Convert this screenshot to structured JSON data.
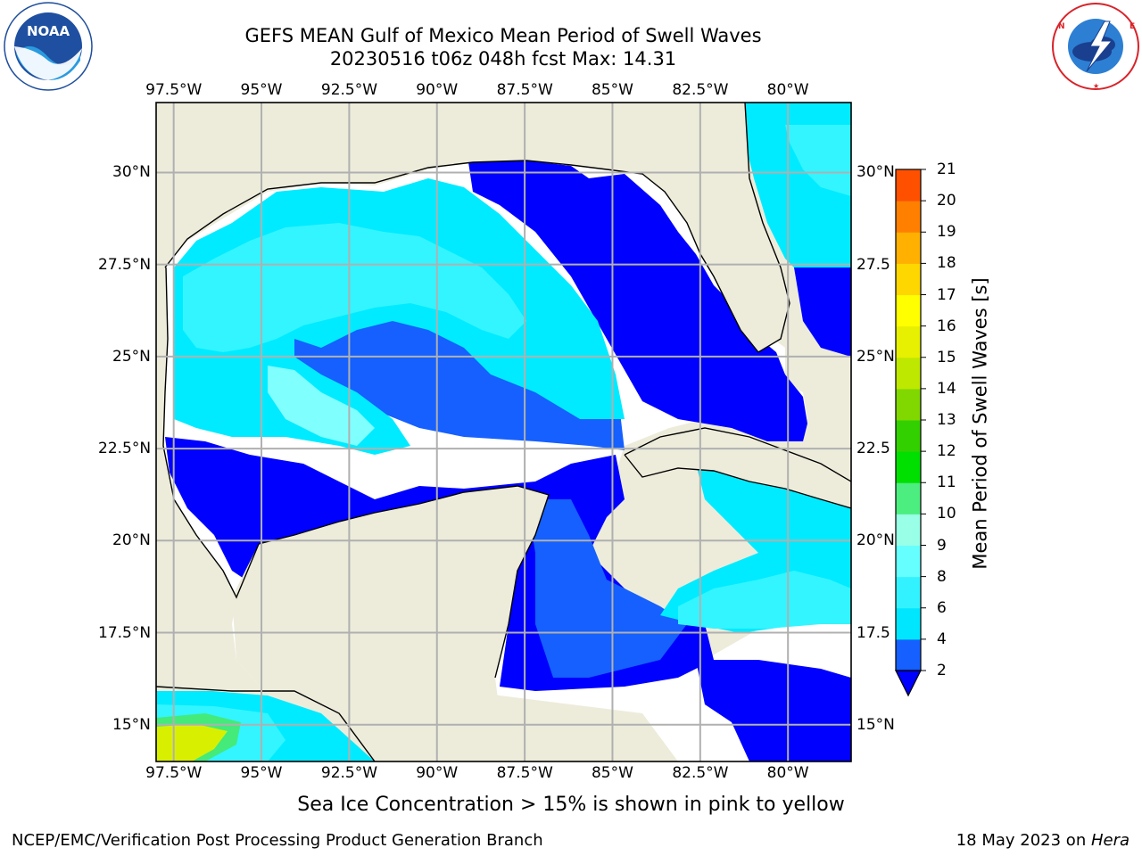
{
  "header": {
    "title": "GEFS MEAN Gulf of Mexico Mean Period of Swell Waves",
    "subtitle": "20230516 t06z 048h fcst   Max: 14.31"
  },
  "logos": {
    "left": "NOAA",
    "left_ring_text": "NATIONAL OCEANIC AND ATMOSPHERIC ADMINISTRATION · U.S. DEPARTMENT OF COMMERCE",
    "right_ring_text": "NATIONAL WEATHER SERVICE"
  },
  "footer": {
    "caption": "Sea Ice Concentration > 15% is shown in pink to yellow",
    "credit": "NCEP/EMC/Verification Post Processing Product Generation Branch",
    "date_prefix": "18 May 2023 on ",
    "date_host": "Hera"
  },
  "chart_data": {
    "type": "heatmap",
    "title": "GEFS MEAN Gulf of Mexico Mean Period of Swell Waves",
    "subtitle": "20230516 t06z 048h fcst   Max: 14.31",
    "max_value": 14.31,
    "colorbar_label": "Mean Period of Swell Waves [s]",
    "lon_ticks": [
      "97.5°W",
      "95°W",
      "92.5°W",
      "90°W",
      "87.5°W",
      "85°W",
      "82.5°W",
      "80°W"
    ],
    "lat_ticks_left": [
      "30°N",
      "27.5°N",
      "25°N",
      "22.5°N",
      "20°N",
      "17.5°N",
      "15°N"
    ],
    "lat_ticks_right": [
      "30°N",
      "27.5",
      "25°N",
      "22.5",
      "20°N",
      "17.5",
      "15°N"
    ],
    "lon_values": [
      -97.5,
      -95,
      -92.5,
      -90,
      -87.5,
      -85,
      -82.5,
      -80
    ],
    "lat_values": [
      30,
      27.5,
      25,
      22.5,
      20,
      17.5,
      15
    ],
    "xlim": [
      -98,
      -78.2
    ],
    "ylim": [
      14,
      31.9
    ],
    "grid": true,
    "colorbar": {
      "ticks": [
        "2",
        "4",
        "6",
        "8",
        "9",
        "10",
        "11",
        "12",
        "13",
        "14",
        "15",
        "16",
        "17",
        "18",
        "19",
        "20",
        "21"
      ],
      "levels": [
        2,
        4,
        6,
        8,
        9,
        10,
        11,
        12,
        13,
        14,
        15,
        16,
        17,
        18,
        19,
        20,
        21
      ],
      "colors": [
        "#1560ff",
        "#00e6ff",
        "#33f2ff",
        "#66ffff",
        "#99ffe6",
        "#4dee80",
        "#00e000",
        "#33d000",
        "#80d800",
        "#bfe800",
        "#e6f000",
        "#ffff00",
        "#ffd700",
        "#ffb000",
        "#ff8000",
        "#ff5000",
        "#ff2000",
        "#ff0000"
      ],
      "extend_min_color": "#0000ff"
    },
    "colors": {
      "land": "#edecdb",
      "no_data": "#ffffff",
      "period_lt_2": "#0000ff",
      "period_2_4": "#1560ff",
      "period_4_6": "#00ebff",
      "period_6_8": "#33f5ff",
      "period_8_9": "#80ffff",
      "period_9_10": "#44ea7a",
      "period_10_11": "#00dd00",
      "period_12_14": "#d8f000"
    }
  }
}
